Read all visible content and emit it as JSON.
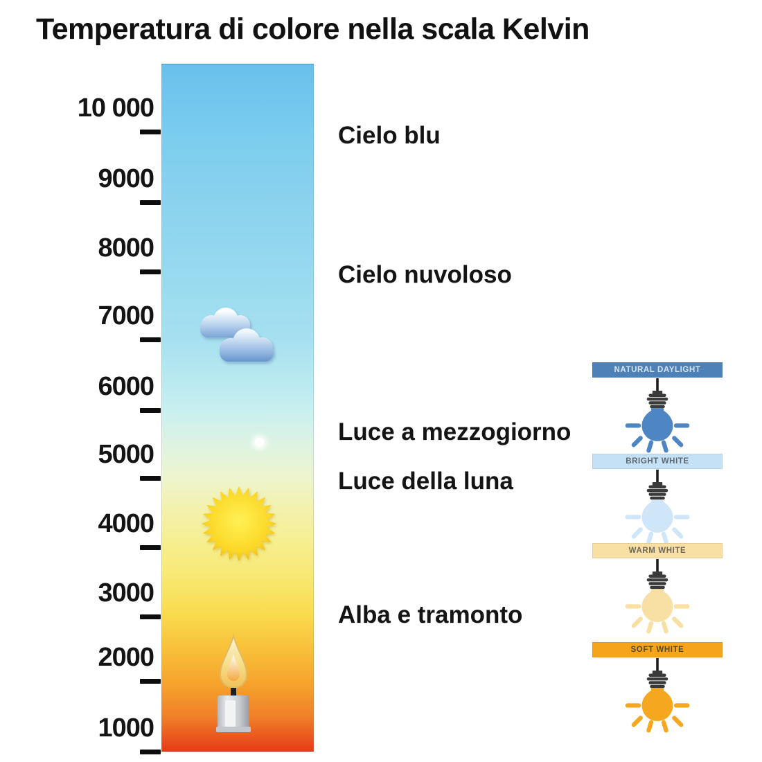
{
  "title": "Temperatura di colore nella scala Kelvin",
  "scale": {
    "unit": "Kelvin",
    "tick_labels": [
      "10 000",
      "9000",
      "8000",
      "7000",
      "6000",
      "5000",
      "4000",
      "3000",
      "2000",
      "1000"
    ],
    "gradient_stops": [
      {
        "pos": "0%",
        "color": "#68c0ec"
      },
      {
        "pos": "10%",
        "color": "#7accee"
      },
      {
        "pos": "20%",
        "color": "#8ad2ee"
      },
      {
        "pos": "30%",
        "color": "#97d9ef"
      },
      {
        "pos": "40%",
        "color": "#a6e0f0"
      },
      {
        "pos": "50%",
        "color": "#c6eff0"
      },
      {
        "pos": "55%",
        "color": "#ddf3e4"
      },
      {
        "pos": "60%",
        "color": "#edf5cf"
      },
      {
        "pos": "65%",
        "color": "#f3f1ab"
      },
      {
        "pos": "70%",
        "color": "#f6ee8d"
      },
      {
        "pos": "75%",
        "color": "#f8e76f"
      },
      {
        "pos": "80%",
        "color": "#f9db4d"
      },
      {
        "pos": "85%",
        "color": "#f8c139"
      },
      {
        "pos": "90%",
        "color": "#f6a42c"
      },
      {
        "pos": "95%",
        "color": "#f07f28"
      },
      {
        "pos": "100%",
        "color": "#e63a17"
      }
    ]
  },
  "annotations": [
    {
      "label": "Cielo blu"
    },
    {
      "label": "Cielo nuvoloso"
    },
    {
      "label": "Luce a mezzogiorno"
    },
    {
      "label": "Luce della luna"
    },
    {
      "label": "Alba e tramonto"
    }
  ],
  "icons": {
    "clouds": "clouds-icon",
    "moon": "moon-dot-icon",
    "sun": "sun-icon",
    "candle": "candle-icon",
    "lightbulb": "lightbulb-icon"
  },
  "bulbs": [
    {
      "label": "NATURAL DAYLIGHT",
      "banner_color": "#4e81b8",
      "label_color": "#d5e4f2",
      "bulb_color": "#4e86c4"
    },
    {
      "label": "BRIGHT WHITE",
      "banner_color": "#c5e1f5",
      "label_color": "#5b6770",
      "bulb_color": "#cfe6f8"
    },
    {
      "label": "WARM WHITE",
      "banner_color": "#f8dfa3",
      "label_color": "#6f685a",
      "bulb_color": "#f8dfa3"
    },
    {
      "label": "SOFT WHITE",
      "banner_color": "#f5a41c",
      "label_color": "#5c4a1e",
      "bulb_color": "#f5a81f"
    }
  ]
}
